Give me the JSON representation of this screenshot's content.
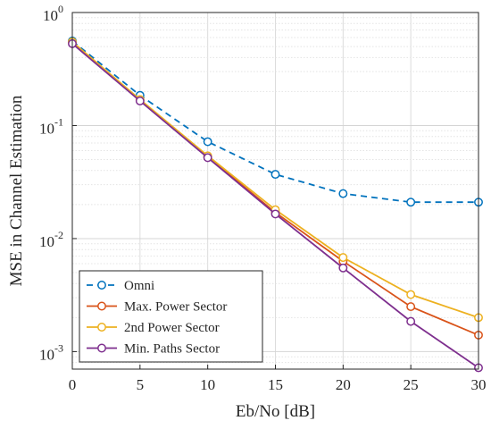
{
  "chart_data": {
    "type": "line",
    "title": "",
    "xlabel": "Eb/No [dB]",
    "ylabel": "MSE in Channel Estimation",
    "x": [
      0,
      5,
      10,
      15,
      20,
      25,
      30
    ],
    "xlim": [
      0,
      30
    ],
    "ylim": [
      0.0007,
      1
    ],
    "yscale": "log",
    "x_ticks": [
      "0",
      "5",
      "10",
      "15",
      "20",
      "25",
      "30"
    ],
    "y_ticks": [
      {
        "value": 0.001,
        "base": "10",
        "exp": "-3"
      },
      {
        "value": 0.01,
        "base": "10",
        "exp": "-2"
      },
      {
        "value": 0.1,
        "base": "10",
        "exp": "-1"
      },
      {
        "value": 1,
        "base": "10",
        "exp": "0"
      }
    ],
    "grid": true,
    "minor_grid": true,
    "legend_position": "bottom-left",
    "series": [
      {
        "name": "Omni",
        "color": "#0072BD",
        "dash": true,
        "marker": "circle",
        "values": [
          0.56,
          0.185,
          0.072,
          0.037,
          0.025,
          0.021,
          0.021
        ]
      },
      {
        "name": "Max. Power Sector",
        "color": "#D95319",
        "dash": false,
        "marker": "circle",
        "values": [
          0.54,
          0.168,
          0.053,
          0.017,
          0.0063,
          0.0025,
          0.0014
        ]
      },
      {
        "name": "2nd Power Sector",
        "color": "#EDB120",
        "dash": false,
        "marker": "circle",
        "values": [
          0.55,
          0.17,
          0.054,
          0.018,
          0.0068,
          0.0032,
          0.002
        ]
      },
      {
        "name": "Min. Paths Sector",
        "color": "#7E2F8E",
        "dash": false,
        "marker": "circle",
        "values": [
          0.53,
          0.165,
          0.052,
          0.0165,
          0.0055,
          0.00185,
          0.00072
        ]
      }
    ]
  }
}
